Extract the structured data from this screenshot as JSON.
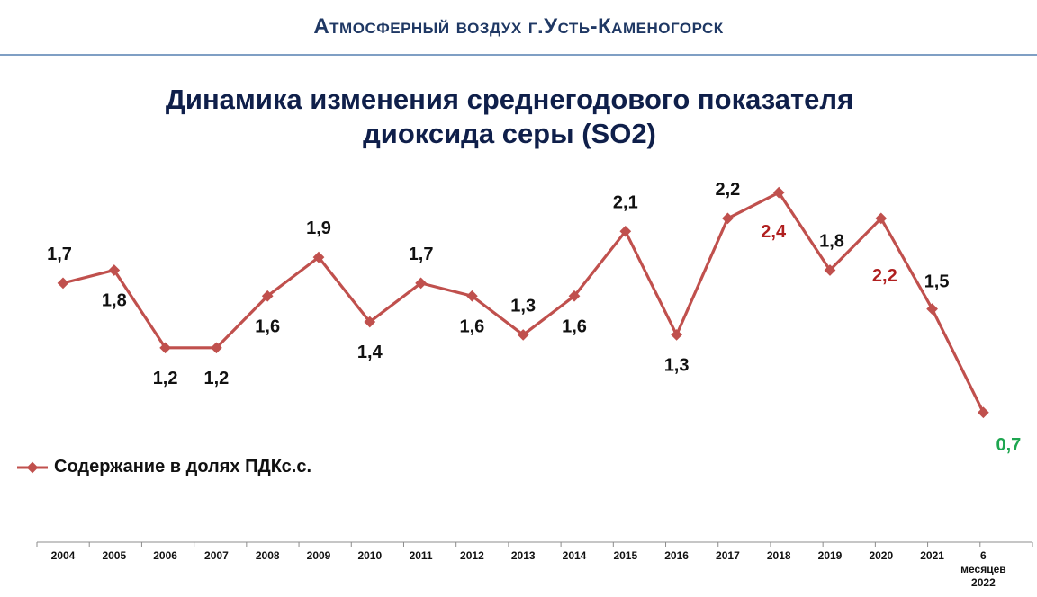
{
  "header": {
    "title": "Атмосферный воздух г.Усть-Каменогорск"
  },
  "chart_data": {
    "type": "line",
    "title_lines": [
      "Динамика изменения среднегодового показателя",
      "диоксида серы (SO2)"
    ],
    "categories": [
      "2004",
      "2005",
      "2006",
      "2007",
      "2008",
      "2009",
      "2010",
      "2011",
      "2012",
      "2013",
      "2014",
      "2015",
      "2016",
      "2017",
      "2018",
      "2019",
      "2020",
      "2021",
      "6 месяцев 2022"
    ],
    "category_lines": [
      [
        "2004"
      ],
      [
        "2005"
      ],
      [
        "2006"
      ],
      [
        "2007"
      ],
      [
        "2008"
      ],
      [
        "2009"
      ],
      [
        "2010"
      ],
      [
        "2011"
      ],
      [
        "2012"
      ],
      [
        "2013"
      ],
      [
        "2014"
      ],
      [
        "2015"
      ],
      [
        "2016"
      ],
      [
        "2017"
      ],
      [
        "2018"
      ],
      [
        "2019"
      ],
      [
        "2020"
      ],
      [
        "2021"
      ],
      [
        "6",
        "месяцев",
        "2022"
      ]
    ],
    "series": [
      {
        "name": "Содержание в долях ПДКс.с.",
        "color": "#c0504d",
        "values": [
          1.7,
          1.8,
          1.2,
          1.2,
          1.6,
          1.9,
          1.4,
          1.7,
          1.6,
          1.3,
          1.6,
          2.1,
          1.3,
          2.2,
          2.4,
          1.8,
          2.2,
          1.5,
          0.7
        ]
      }
    ],
    "data_labels": [
      "1,7",
      "1,8",
      "1,2",
      "1,2",
      "1,6",
      "1,9",
      "1,4",
      "1,7",
      "1,6",
      "1,3",
      "1,6",
      "2,1",
      "1,3",
      "2,2",
      "2,4",
      "1,8",
      "2,2",
      "1,5",
      "0,7"
    ],
    "label_colors": {
      "default": "#111111",
      "highlight": "#b01f1f",
      "last": "#1ea650"
    },
    "highlight_indices": [
      14,
      16
    ],
    "last_index": 18,
    "legend_position": "left",
    "grid": false
  }
}
